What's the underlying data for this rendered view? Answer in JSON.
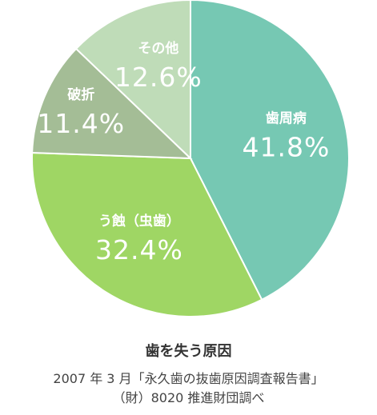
{
  "chart_data": {
    "type": "pie",
    "title": "歯を失う原因",
    "categories": [
      "歯周病",
      "う蝕（虫歯）",
      "破折",
      "その他"
    ],
    "values": [
      41.8,
      32.4,
      11.4,
      12.6
    ],
    "value_labels": [
      "41.8%",
      "32.4%",
      "11.4%",
      "12.6%"
    ],
    "colors": [
      "#76c8b3",
      "#9fd664",
      "#a4bd96",
      "#bfdcb8"
    ],
    "start_angle": "12 o'clock",
    "direction": "clockwise",
    "legend": "none (labels inside slices)"
  },
  "source": {
    "line1": "2007 年 3 月「永久歯の抜歯原因調査報告書」",
    "line2": "（財）8020 推進財団調べ"
  }
}
